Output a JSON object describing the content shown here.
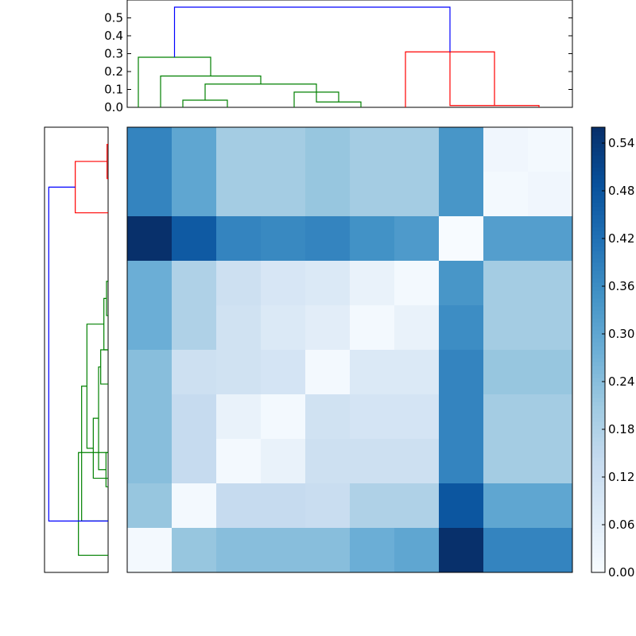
{
  "chart_data": [
    {
      "type": "dendrogram",
      "orientation": "top",
      "ylim": [
        0,
        0.6
      ],
      "yticks": [
        "0.0",
        "0.1",
        "0.2",
        "0.3",
        "0.4",
        "0.5"
      ],
      "colors": {
        "main": "#0000ff",
        "group_a": "#008000",
        "group_b": "#ff0000"
      },
      "links": [
        {
          "left": 2.5,
          "right": 4.5,
          "height": 0.04,
          "color": "group_a"
        },
        {
          "left": 8.5,
          "right": 10.5,
          "height": 0.03,
          "color": "group_a"
        },
        {
          "left": 7.5,
          "right": 9.5,
          "height": 0.085,
          "color": "group_a"
        },
        {
          "left": 3.5,
          "right": 8.5,
          "height": 0.13,
          "color": "group_a"
        },
        {
          "left": 1.5,
          "right": 6.0,
          "height": 0.175,
          "color": "group_a"
        },
        {
          "left": 0.5,
          "right": 3.75,
          "height": 0.28,
          "color": "group_a"
        },
        {
          "left": 14.5,
          "right": 18.5,
          "height": 0.01,
          "color": "group_b"
        },
        {
          "left": 12.5,
          "right": 16.5,
          "height": 0.31,
          "color": "group_b"
        },
        {
          "left": 2.125,
          "right": 14.5,
          "height": 0.56,
          "color": "main"
        }
      ]
    },
    {
      "type": "dendrogram",
      "orientation": "left",
      "colors": {
        "main": "#0000ff",
        "group_a": "#008000",
        "group_b": "#ff0000"
      },
      "links": [
        {
          "left": 0.5,
          "right": 1.5,
          "height": 0.01,
          "color": "group_b"
        },
        {
          "left": 1.0,
          "right": 2.5,
          "height": 0.31,
          "color": "group_b"
        },
        {
          "left": 9.5,
          "right": 10.5,
          "height": 0.02,
          "color": "group_a"
        },
        {
          "left": 4.5,
          "right": 5.5,
          "height": 0.015,
          "color": "group_a"
        },
        {
          "left": 5.0,
          "right": 6.5,
          "height": 0.04,
          "color": "group_a"
        },
        {
          "left": 6.5,
          "right": 7.5,
          "height": 0.07,
          "color": "group_a"
        },
        {
          "left": 7.0,
          "right": 10.0,
          "height": 0.09,
          "color": "group_a"
        },
        {
          "left": 8.5,
          "right": 10.25,
          "height": 0.14,
          "color": "group_a"
        },
        {
          "left": 5.75,
          "right": 9.375,
          "height": 0.2,
          "color": "group_a"
        },
        {
          "left": 7.5625,
          "right": 11.5,
          "height": 0.25,
          "color": "group_a"
        },
        {
          "left": 9.5,
          "right": 12.5,
          "height": 0.28,
          "color": "group_a"
        },
        {
          "left": 1.75,
          "right": 11.5,
          "height": 0.56,
          "color": "main"
        }
      ]
    },
    {
      "type": "heatmap",
      "colormap": "Blues",
      "vmin": 0,
      "vmax": 0.56,
      "values": [
        [
          0.38,
          0.3,
          0.2,
          0.2,
          0.22,
          0.2,
          0.2,
          0.34,
          0.02,
          0.01
        ],
        [
          0.38,
          0.3,
          0.2,
          0.2,
          0.22,
          0.2,
          0.2,
          0.34,
          0.01,
          0.02
        ],
        [
          0.56,
          0.47,
          0.38,
          0.37,
          0.38,
          0.35,
          0.33,
          0.0,
          0.32,
          0.32
        ],
        [
          0.28,
          0.18,
          0.12,
          0.09,
          0.08,
          0.04,
          0.01,
          0.34,
          0.2,
          0.2
        ],
        [
          0.28,
          0.18,
          0.11,
          0.08,
          0.06,
          0.01,
          0.04,
          0.36,
          0.2,
          0.2
        ],
        [
          0.24,
          0.12,
          0.11,
          0.1,
          0.01,
          0.08,
          0.08,
          0.38,
          0.22,
          0.22
        ],
        [
          0.24,
          0.14,
          0.04,
          0.01,
          0.11,
          0.1,
          0.1,
          0.38,
          0.2,
          0.2
        ],
        [
          0.24,
          0.14,
          0.01,
          0.04,
          0.12,
          0.12,
          0.12,
          0.38,
          0.2,
          0.2
        ],
        [
          0.22,
          0.01,
          0.14,
          0.14,
          0.13,
          0.18,
          0.18,
          0.48,
          0.3,
          0.3
        ],
        [
          0.01,
          0.22,
          0.24,
          0.24,
          0.24,
          0.28,
          0.3,
          0.56,
          0.38,
          0.38
        ]
      ]
    },
    {
      "type": "colorbar",
      "colormap": "Blues",
      "range": [
        0,
        0.56
      ],
      "ticks": [
        {
          "value": 0.0,
          "label": "0.00"
        },
        {
          "value": 0.06,
          "label": "0.06"
        },
        {
          "value": 0.12,
          "label": "0.12"
        },
        {
          "value": 0.18,
          "label": "0.18"
        },
        {
          "value": 0.24,
          "label": "0.24"
        },
        {
          "value": 0.3,
          "label": "0.30"
        },
        {
          "value": 0.36,
          "label": "0.36"
        },
        {
          "value": 0.42,
          "label": "0.42"
        },
        {
          "value": 0.48,
          "label": "0.48"
        },
        {
          "value": 0.54,
          "label": "0.54"
        }
      ]
    }
  ]
}
